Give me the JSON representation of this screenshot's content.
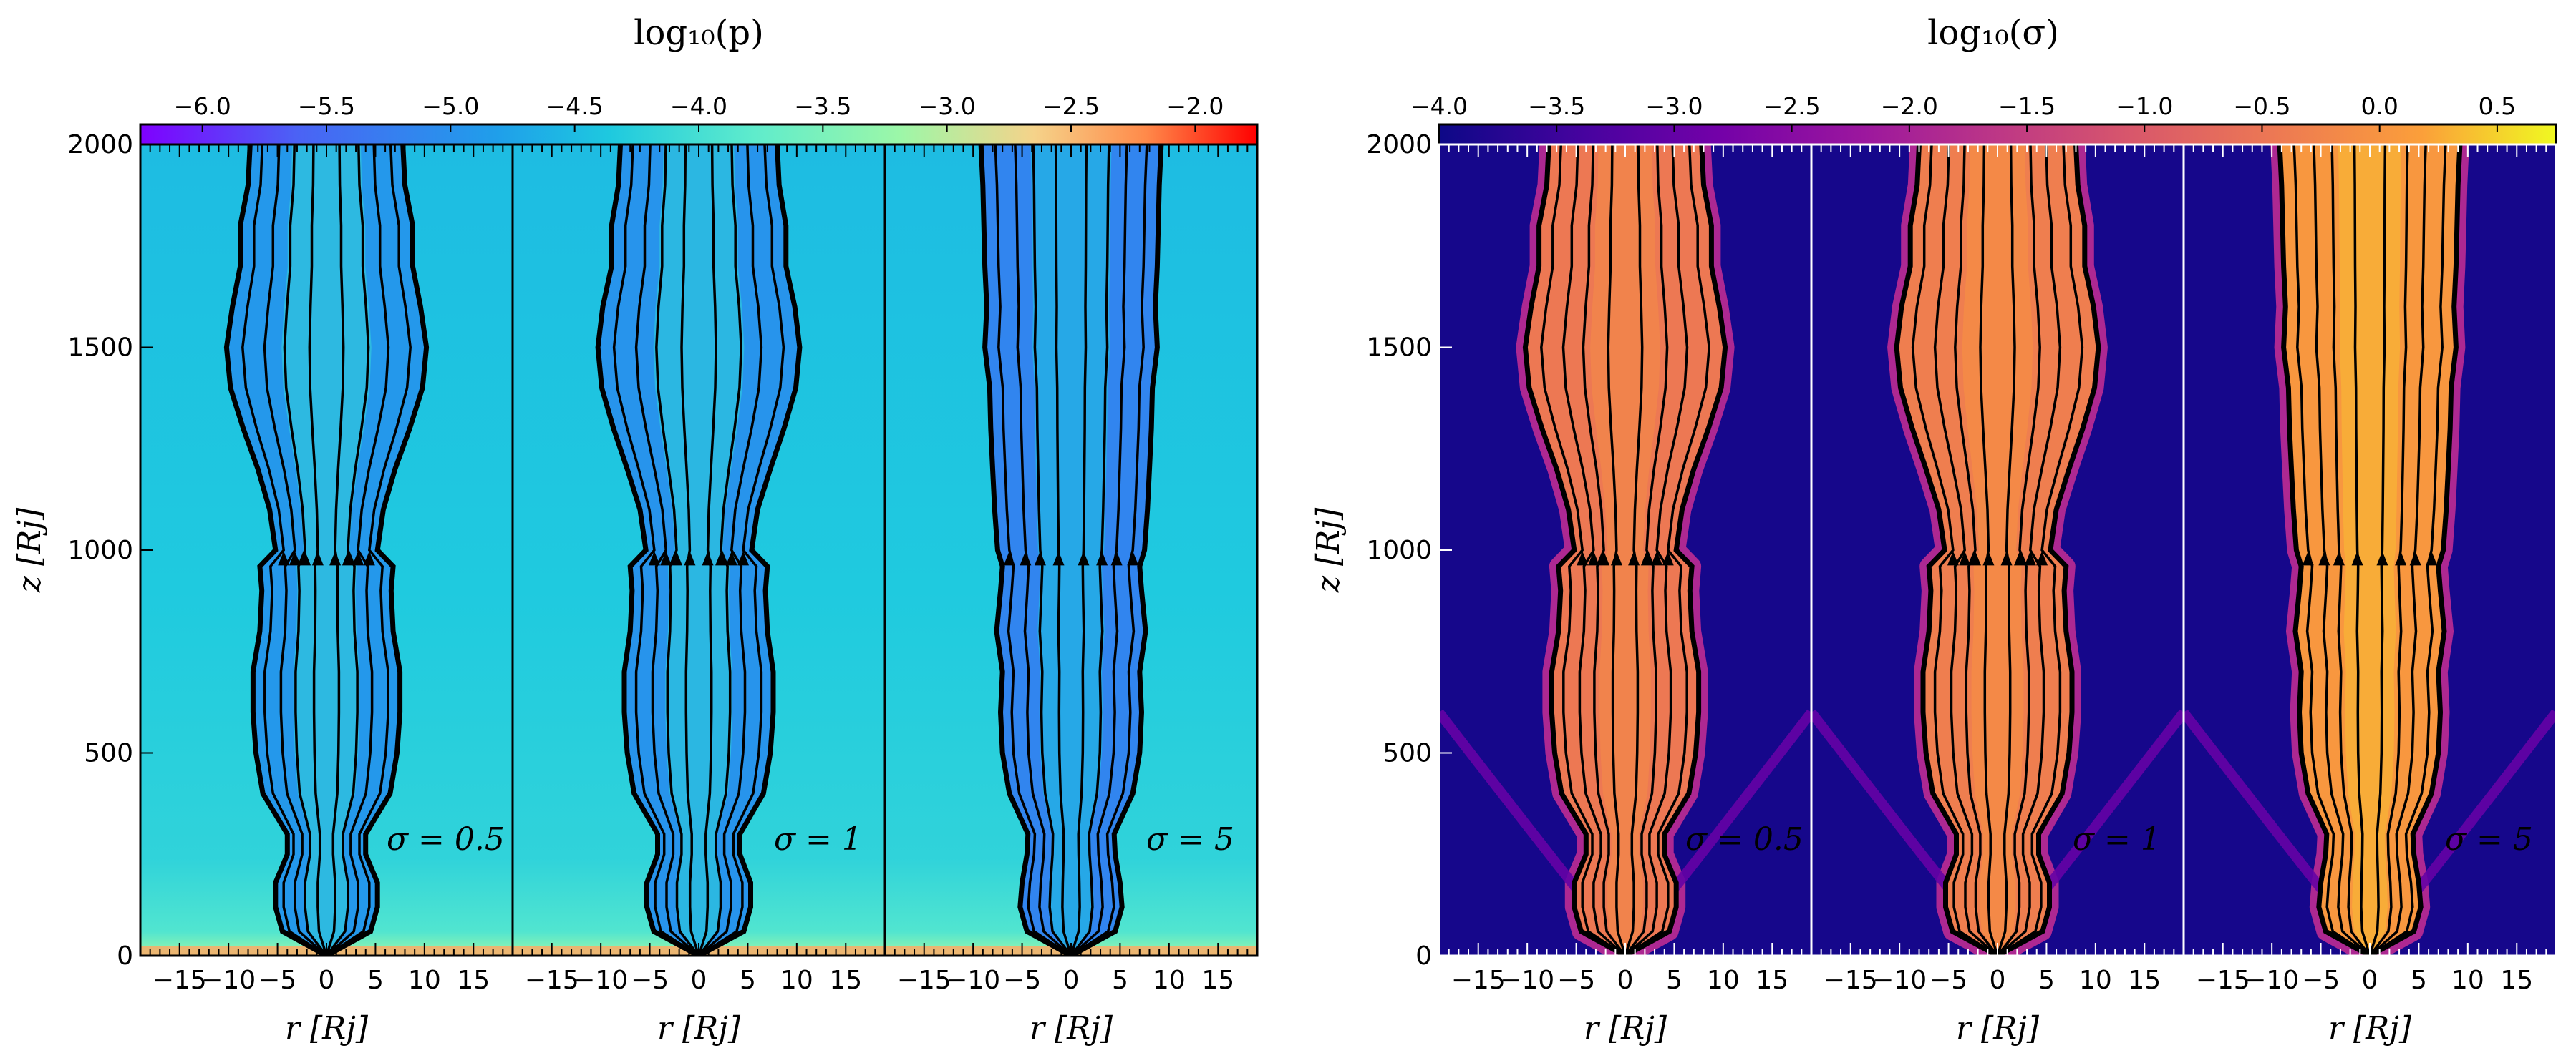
{
  "chart_data": [
    {
      "type": "heatmap",
      "id": "pressure",
      "title": "log₁₀(p)",
      "colormap": "rainbow",
      "colorbar": {
        "range": [
          -6.25,
          -1.75
        ],
        "tick_values": [
          -6.0,
          -5.5,
          -5.0,
          -4.5,
          -4.0,
          -3.5,
          -3.0,
          -2.5,
          -2.0
        ],
        "tick_labels": [
          "−6.0",
          "−5.5",
          "−5.0",
          "−4.5",
          "−4.0",
          "−3.5",
          "−3.0",
          "−2.5",
          "−2.0"
        ]
      },
      "ylabel": "z [Rj]",
      "ylim": [
        0,
        2000
      ],
      "y_ticks": [
        0,
        500,
        1000,
        1500,
        2000
      ],
      "y_tick_labels": [
        "0",
        "500",
        "1000",
        "1500",
        "2000"
      ],
      "xlabel": "r [Rj]",
      "xlim": [
        -19,
        19
      ],
      "x_ticks": [
        -15,
        -10,
        -5,
        0,
        5,
        10,
        15
      ],
      "x_tick_labels": [
        "−15",
        "−10",
        "−5",
        "0",
        "5",
        "10",
        "15"
      ],
      "background_value": -4.45,
      "panels": [
        {
          "label": "σ = 0.5",
          "sigma": 0.5,
          "jet_value": -4.9
        },
        {
          "label": "σ = 1",
          "sigma": 1,
          "jet_value": -4.95
        },
        {
          "label": "σ = 5",
          "sigma": 5,
          "jet_value": -5.15
        }
      ]
    },
    {
      "type": "heatmap",
      "id": "magnetization",
      "title": "log₁₀(σ)",
      "colormap": "plasma",
      "colorbar": {
        "range": [
          -4.0,
          0.75
        ],
        "tick_values": [
          -4.0,
          -3.5,
          -3.0,
          -2.5,
          -2.0,
          -1.5,
          -1.0,
          -0.5,
          0.0,
          0.5
        ],
        "tick_labels": [
          "−4.0",
          "−3.5",
          "−3.0",
          "−2.5",
          "−2.0",
          "−1.5",
          "−1.0",
          "−0.5",
          "0.0",
          "0.5"
        ]
      },
      "ylabel": "z [Rj]",
      "ylim": [
        0,
        2000
      ],
      "y_ticks": [
        0,
        500,
        1000,
        1500,
        2000
      ],
      "y_tick_labels": [
        "0",
        "500",
        "1000",
        "1500",
        "2000"
      ],
      "xlabel": "r [Rj]",
      "xlim": [
        -19,
        19
      ],
      "x_ticks": [
        -15,
        -10,
        -5,
        0,
        5,
        10,
        15
      ],
      "x_tick_labels": [
        "−15",
        "−10",
        "−5",
        "0",
        "5",
        "10",
        "15"
      ],
      "background_value": -3.9,
      "panels": [
        {
          "label": "σ = 0.5",
          "sigma": 0.5,
          "jet_value": -0.45
        },
        {
          "label": "σ = 1",
          "sigma": 1,
          "jet_value": -0.35
        },
        {
          "label": "σ = 5",
          "sigma": 5,
          "jet_value": 0.05
        }
      ]
    }
  ],
  "jet_profiles": {
    "description": "approximate jet boundary half-width r (in Rj) versus height z (in Rj) read from the figure",
    "z": [
      0,
      60,
      120,
      180,
      250,
      300,
      400,
      500,
      600,
      700,
      800,
      900,
      960,
      1000,
      1100,
      1200,
      1300,
      1400,
      1500,
      1600,
      1700,
      1800,
      1900,
      2000
    ],
    "boundary": [
      [
        0,
        4.5,
        5.2,
        5.2,
        4.0,
        4.0,
        6.5,
        7.2,
        7.5,
        7.5,
        6.8,
        6.6,
        6.8,
        5.2,
        5.8,
        7.0,
        8.5,
        9.8,
        10.2,
        9.6,
        8.8,
        8.8,
        8.0,
        7.8
      ],
      [
        0,
        4.6,
        5.3,
        5.3,
        4.2,
        4.2,
        6.6,
        7.3,
        7.6,
        7.6,
        7.0,
        6.8,
        7.0,
        5.4,
        6.0,
        7.3,
        8.7,
        9.9,
        10.3,
        9.8,
        8.9,
        8.9,
        8.2,
        8.0
      ],
      [
        0,
        4.5,
        5.2,
        5.0,
        4.5,
        4.4,
        6.3,
        7.0,
        7.2,
        7.0,
        7.6,
        7.2,
        7.0,
        7.5,
        7.8,
        8.0,
        8.2,
        8.3,
        8.8,
        8.6,
        8.8,
        8.9,
        9.0,
        9.2
      ]
    ],
    "streamline_fractions": [
      0.17,
      0.42,
      0.62,
      0.84
    ],
    "arrow_height": 980
  }
}
